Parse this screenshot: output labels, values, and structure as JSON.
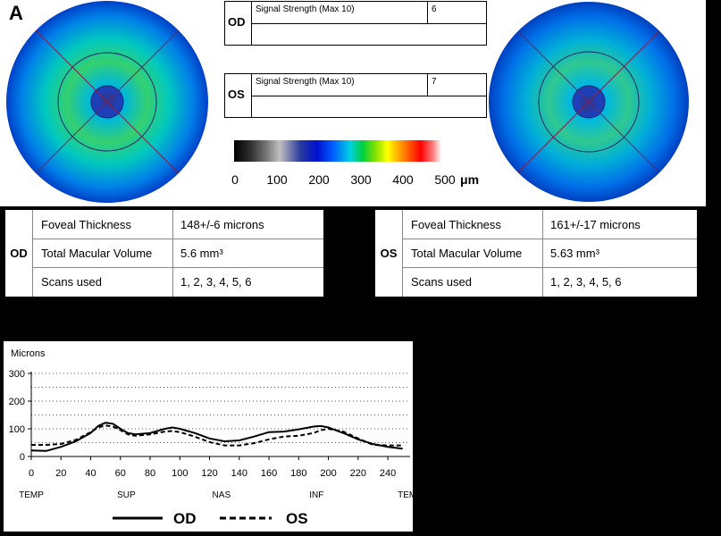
{
  "panel_label": "A",
  "signal": {
    "od": {
      "eye": "OD",
      "label": "Signal Strength (Max 10)",
      "value": "6"
    },
    "os": {
      "eye": "OS",
      "label": "Signal Strength (Max 10)",
      "value": "7"
    }
  },
  "colorbar": {
    "ticks": [
      "0",
      "100",
      "200",
      "300",
      "400",
      "500"
    ],
    "unit": "μm"
  },
  "od_table": {
    "eye": "OD",
    "rows": [
      {
        "label": "Foveal Thickness",
        "value": "148+/-6 microns"
      },
      {
        "label": "Total Macular Volume",
        "value": "5.6 mm³"
      },
      {
        "label": "Scans used",
        "value": "1, 2, 3, 4, 5, 6"
      }
    ]
  },
  "os_table": {
    "eye": "OS",
    "rows": [
      {
        "label": "Foveal Thickness",
        "value": "161+/-17 microns"
      },
      {
        "label": "Total Macular Volume",
        "value": "5.63 mm³"
      },
      {
        "label": "Scans used",
        "value": "1, 2, 3, 4, 5, 6"
      }
    ]
  },
  "chart_data": {
    "type": "line",
    "title": "",
    "ylabel": "Microns",
    "xlabel": "",
    "xlim": [
      0,
      255
    ],
    "ylim": [
      0,
      300
    ],
    "x_ticks": [
      0,
      20,
      40,
      60,
      80,
      100,
      120,
      140,
      160,
      180,
      200,
      220,
      240
    ],
    "y_ticks": [
      0,
      100,
      200,
      300
    ],
    "region_labels": [
      {
        "text": "TEMP",
        "x": 0
      },
      {
        "text": "SUP",
        "x": 64
      },
      {
        "text": "NAS",
        "x": 128
      },
      {
        "text": "INF",
        "x": 192
      },
      {
        "text": "TEMP",
        "x": 255
      }
    ],
    "grid": true,
    "legend_position": "bottom",
    "series": [
      {
        "name": "OD",
        "style": "solid",
        "x": [
          0,
          10,
          20,
          30,
          40,
          45,
          50,
          55,
          60,
          65,
          70,
          80,
          90,
          95,
          100,
          110,
          120,
          130,
          140,
          150,
          160,
          170,
          180,
          190,
          195,
          200,
          210,
          220,
          230,
          240,
          250
        ],
        "y": [
          22,
          20,
          35,
          55,
          85,
          110,
          122,
          118,
          100,
          85,
          80,
          85,
          100,
          105,
          100,
          85,
          65,
          55,
          58,
          72,
          88,
          90,
          98,
          108,
          110,
          105,
          85,
          62,
          45,
          35,
          28
        ]
      },
      {
        "name": "OS",
        "style": "dashed",
        "x": [
          0,
          10,
          20,
          30,
          40,
          45,
          50,
          55,
          60,
          65,
          70,
          80,
          90,
          95,
          100,
          110,
          120,
          130,
          140,
          150,
          160,
          170,
          180,
          190,
          195,
          200,
          210,
          220,
          230,
          240,
          250
        ],
        "y": [
          42,
          42,
          45,
          60,
          88,
          105,
          112,
          108,
          95,
          80,
          75,
          80,
          90,
          92,
          88,
          72,
          52,
          40,
          40,
          48,
          62,
          72,
          75,
          85,
          95,
          100,
          90,
          65,
          42,
          40,
          40
        ]
      }
    ]
  }
}
